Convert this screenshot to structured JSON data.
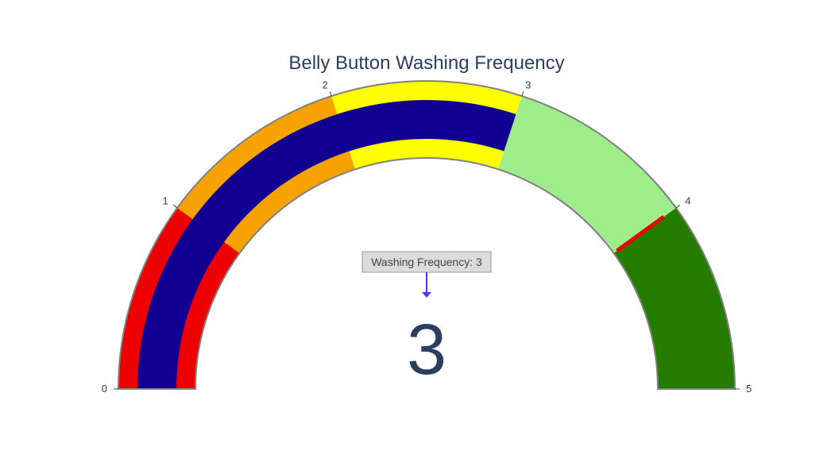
{
  "chart_data": {
    "type": "gauge",
    "title": "Belly Button Washing Frequency",
    "value": 3,
    "value_label": "3",
    "range": [
      0,
      5
    ],
    "ticks": [
      {
        "value": 0,
        "label": "0"
      },
      {
        "value": 1,
        "label": "1"
      },
      {
        "value": 2,
        "label": "2"
      },
      {
        "value": 3,
        "label": "3"
      },
      {
        "value": 4,
        "label": "4"
      },
      {
        "value": 5,
        "label": "5"
      }
    ],
    "steps": [
      {
        "range": [
          0,
          1
        ],
        "color": "#ee0000"
      },
      {
        "range": [
          1,
          2
        ],
        "color": "#f7a200"
      },
      {
        "range": [
          2,
          3
        ],
        "color": "#ffff00"
      },
      {
        "range": [
          3,
          4
        ],
        "color": "#9ded8b"
      },
      {
        "range": [
          4,
          5
        ],
        "color": "#257d00"
      }
    ],
    "bar": {
      "value": 3,
      "color": "#120092"
    },
    "threshold": {
      "value": 4,
      "color": "#ee0000"
    },
    "border_color": "#808080",
    "annotation": {
      "text": "Washing Frequency: 3",
      "arrow_color": "#5533ff",
      "bg_color": "#dcdcdc",
      "border_color": "#999999"
    }
  }
}
